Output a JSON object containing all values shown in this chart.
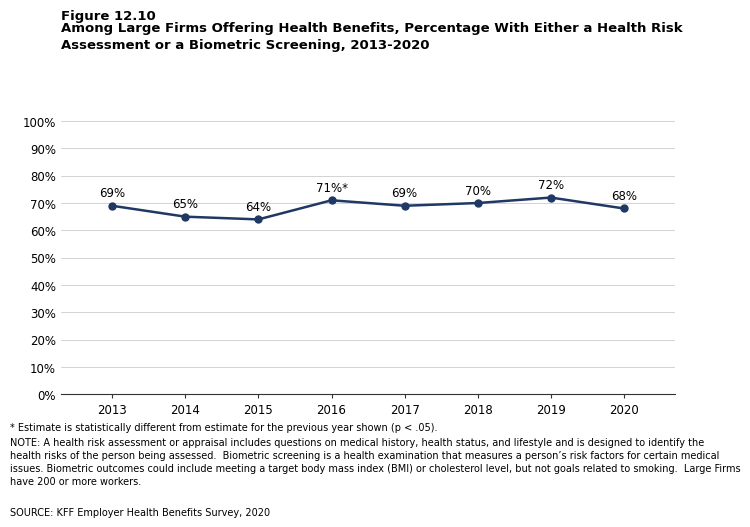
{
  "title_line1": "Figure 12.10",
  "title_line2": "Among Large Firms Offering Health Benefits, Percentage With Either a Health Risk\nAssessment or a Biometric Screening, 2013-2020",
  "years": [
    2013,
    2014,
    2015,
    2016,
    2017,
    2018,
    2019,
    2020
  ],
  "values": [
    0.69,
    0.65,
    0.64,
    0.71,
    0.69,
    0.7,
    0.72,
    0.68
  ],
  "labels": [
    "69%",
    "65%",
    "64%",
    "71%*",
    "69%",
    "70%",
    "72%",
    "68%"
  ],
  "line_color": "#1F3864",
  "ylim": [
    0,
    1.0
  ],
  "ytick_vals": [
    0.0,
    0.1,
    0.2,
    0.3,
    0.4,
    0.5,
    0.6,
    0.7,
    0.8,
    0.9,
    1.0
  ],
  "ytick_labels": [
    "0%",
    "10%",
    "20%",
    "30%",
    "40%",
    "50%",
    "60%",
    "70%",
    "80%",
    "90%",
    "100%"
  ],
  "footnote1": "* Estimate is statistically different from estimate for the previous year shown (p < .05).",
  "footnote2": "NOTE: A health risk assessment or appraisal includes questions on medical history, health status, and lifestyle and is designed to identify the\nhealth risks of the person being assessed.  Biometric screening is a health examination that measures a person’s risk factors for certain medical\nissues. Biometric outcomes could include meeting a target body mass index (BMI) or cholesterol level, but not goals related to smoking.  Large Firms\nhave 200 or more workers.",
  "footnote3": "SOURCE: KFF Employer Health Benefits Survey, 2020",
  "background_color": "#ffffff",
  "title1_fontsize": 9.5,
  "title2_fontsize": 9.5,
  "tick_fontsize": 8.5,
  "label_fontsize": 8.5,
  "footnote_fontsize": 7.0
}
